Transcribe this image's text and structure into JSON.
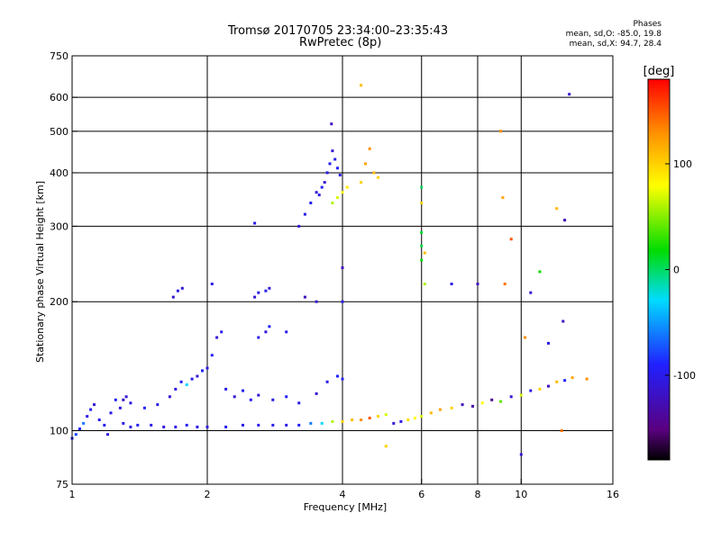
{
  "header": {
    "title_line1": "Tromsø 20170705 23:34:00–23:35:43",
    "title_line2": "RwPretec (8p)",
    "stats_title": "Phases",
    "stats_O": "mean, sd,O:  -85.0,  19.8",
    "stats_X": "mean, sd,X:  94.7,  28.4"
  },
  "colors": {
    "gridline": "#000000",
    "axis": "#000000"
  },
  "chart_data": {
    "type": "scatter",
    "xlabel": "Frequency [MHz]",
    "ylabel": "Stationary phase Virtual Height [km]",
    "xscale": "log",
    "yscale": "log",
    "xlim": [
      1,
      16
    ],
    "ylim": [
      75,
      750
    ],
    "xticks": [
      1,
      2,
      4,
      6,
      8,
      10,
      16
    ],
    "yticks": [
      75,
      100,
      200,
      300,
      400,
      500,
      600,
      750
    ],
    "x_gridlines": [
      2,
      4,
      6,
      8,
      10
    ],
    "y_gridlines": [
      100,
      200,
      300,
      400,
      500,
      600
    ],
    "colorbar": {
      "label": "[deg]",
      "range": [
        -180,
        180
      ],
      "ticks": [
        100,
        0,
        -100
      ],
      "colormap": [
        "#000000",
        "#5a0080",
        "#2020ff",
        "#00dcff",
        "#00dc00",
        "#ffff00",
        "#ff9000",
        "#ff0000"
      ]
    },
    "series": [
      {
        "points": [
          [
            1.0,
            96,
            -95
          ],
          [
            1.02,
            98,
            -80
          ],
          [
            1.04,
            101,
            -90
          ],
          [
            1.06,
            104,
            -60
          ],
          [
            1.08,
            108,
            -100
          ],
          [
            1.1,
            112,
            -95
          ],
          [
            1.12,
            115,
            -110
          ],
          [
            1.15,
            106,
            -100
          ],
          [
            1.18,
            103,
            -95
          ],
          [
            1.2,
            98,
            -105
          ],
          [
            1.22,
            110,
            -100
          ],
          [
            1.25,
            118,
            -90
          ],
          [
            1.28,
            113,
            -110
          ],
          [
            1.3,
            104,
            -100
          ],
          [
            1.35,
            102,
            -100
          ],
          [
            1.4,
            103,
            -95
          ],
          [
            1.5,
            103,
            -100
          ],
          [
            1.6,
            102,
            -105
          ],
          [
            1.7,
            102,
            -100
          ],
          [
            1.8,
            103,
            -95
          ],
          [
            1.9,
            102,
            -100
          ],
          [
            2.0,
            102,
            -100
          ],
          [
            2.2,
            102,
            -95
          ],
          [
            2.4,
            103,
            -100
          ],
          [
            2.6,
            103,
            -100
          ],
          [
            2.8,
            103,
            -95
          ],
          [
            3.0,
            103,
            -100
          ],
          [
            3.2,
            103,
            -90
          ],
          [
            3.4,
            104,
            -60
          ],
          [
            3.6,
            104,
            -30
          ],
          [
            3.8,
            105,
            60
          ],
          [
            4.0,
            105,
            100
          ],
          [
            4.2,
            106,
            110
          ],
          [
            4.4,
            106,
            130
          ],
          [
            4.6,
            107,
            150
          ],
          [
            4.8,
            108,
            100
          ],
          [
            5.0,
            109,
            70
          ],
          [
            5.2,
            104,
            -110
          ],
          [
            5.4,
            105,
            -100
          ],
          [
            5.6,
            106,
            95
          ],
          [
            5.8,
            107,
            80
          ],
          [
            6.0,
            108,
            70
          ],
          [
            6.3,
            110,
            110
          ],
          [
            6.6,
            112,
            120
          ],
          [
            7.0,
            113,
            100
          ],
          [
            7.4,
            115,
            -120
          ],
          [
            7.8,
            114,
            -130
          ],
          [
            8.2,
            116,
            80
          ],
          [
            8.6,
            118,
            -140
          ],
          [
            9.0,
            117,
            40
          ],
          [
            9.5,
            120,
            -110
          ],
          [
            10.0,
            121,
            70
          ],
          [
            10.5,
            124,
            -100
          ],
          [
            11.0,
            125,
            100
          ],
          [
            11.5,
            127,
            -120
          ],
          [
            12.0,
            130,
            110
          ],
          [
            12.5,
            131,
            -90
          ],
          [
            13.0,
            133,
            120
          ],
          [
            14.0,
            132,
            130
          ],
          [
            1.3,
            118,
            -120
          ],
          [
            1.32,
            120,
            -110
          ],
          [
            1.35,
            116,
            -100
          ],
          [
            1.45,
            113,
            -90
          ],
          [
            1.55,
            115,
            -100
          ],
          [
            1.65,
            120,
            -110
          ],
          [
            1.7,
            125,
            -100
          ],
          [
            1.75,
            130,
            -95
          ],
          [
            1.8,
            128,
            -30
          ],
          [
            1.85,
            132,
            -100
          ],
          [
            1.9,
            134,
            -110
          ],
          [
            1.95,
            138,
            -90
          ],
          [
            2.0,
            140,
            -100
          ],
          [
            2.05,
            150,
            -95
          ],
          [
            2.1,
            165,
            -110
          ],
          [
            2.15,
            170,
            -100
          ],
          [
            2.2,
            125,
            -100
          ],
          [
            2.3,
            120,
            -110
          ],
          [
            2.4,
            124,
            -95
          ],
          [
            2.5,
            118,
            -100
          ],
          [
            2.6,
            121,
            -110
          ],
          [
            2.8,
            118,
            -100
          ],
          [
            3.0,
            120,
            -95
          ],
          [
            3.2,
            116,
            -100
          ],
          [
            3.5,
            122,
            -110
          ],
          [
            3.7,
            130,
            -100
          ],
          [
            3.9,
            134,
            -90
          ],
          [
            4.0,
            132,
            -95
          ],
          [
            1.68,
            205,
            -110
          ],
          [
            1.72,
            212,
            -100
          ],
          [
            1.76,
            215,
            -110
          ],
          [
            2.05,
            220,
            -100
          ],
          [
            2.55,
            205,
            -110
          ],
          [
            2.6,
            210,
            -100
          ],
          [
            2.7,
            212,
            -95
          ],
          [
            2.75,
            215,
            -110
          ],
          [
            2.6,
            165,
            -100
          ],
          [
            2.7,
            170,
            -110
          ],
          [
            2.75,
            175,
            -95
          ],
          [
            2.55,
            305,
            -100
          ],
          [
            3.2,
            300,
            -110
          ],
          [
            3.3,
            320,
            -100
          ],
          [
            3.4,
            340,
            -95
          ],
          [
            3.5,
            360,
            -110
          ],
          [
            3.55,
            355,
            -100
          ],
          [
            3.6,
            370,
            -90
          ],
          [
            3.65,
            380,
            -110
          ],
          [
            3.7,
            400,
            -100
          ],
          [
            3.75,
            420,
            -95
          ],
          [
            3.8,
            450,
            -110
          ],
          [
            3.85,
            430,
            -100
          ],
          [
            3.9,
            410,
            -90
          ],
          [
            3.95,
            395,
            -100
          ],
          [
            3.78,
            520,
            -120
          ],
          [
            3.8,
            340,
            60
          ],
          [
            3.9,
            350,
            70
          ],
          [
            4.0,
            360,
            80
          ],
          [
            4.1,
            370,
            90
          ],
          [
            4.4,
            380,
            100
          ],
          [
            4.5,
            420,
            120
          ],
          [
            4.7,
            400,
            110
          ],
          [
            4.8,
            390,
            100
          ],
          [
            4.4,
            640,
            110
          ],
          [
            4.6,
            455,
            130
          ],
          [
            4.0,
            240,
            -120
          ],
          [
            6.0,
            370,
            0
          ],
          [
            6.0,
            290,
            10
          ],
          [
            6.0,
            270,
            5
          ],
          [
            6.0,
            250,
            15
          ],
          [
            6.1,
            220,
            60
          ],
          [
            6.1,
            260,
            110
          ],
          [
            6.0,
            340,
            100
          ],
          [
            7.0,
            220,
            -100
          ],
          [
            8.0,
            220,
            -120
          ],
          [
            9.0,
            500,
            130
          ],
          [
            9.1,
            350,
            120
          ],
          [
            9.2,
            220,
            140
          ],
          [
            10.5,
            210,
            -110
          ],
          [
            11.0,
            235,
            20
          ],
          [
            12.0,
            330,
            110
          ],
          [
            12.5,
            310,
            -120
          ],
          [
            12.8,
            610,
            -110
          ],
          [
            9.5,
            280,
            150
          ],
          [
            10.2,
            165,
            130
          ],
          [
            11.5,
            160,
            -100
          ],
          [
            12.4,
            180,
            -120
          ],
          [
            12.3,
            100,
            140
          ],
          [
            10.0,
            88,
            -110
          ],
          [
            5.0,
            92,
            100
          ],
          [
            3.5,
            200,
            -110
          ],
          [
            3.3,
            205,
            -120
          ],
          [
            3.0,
            170,
            -100
          ],
          [
            4.0,
            200,
            -100
          ]
        ]
      }
    ]
  }
}
